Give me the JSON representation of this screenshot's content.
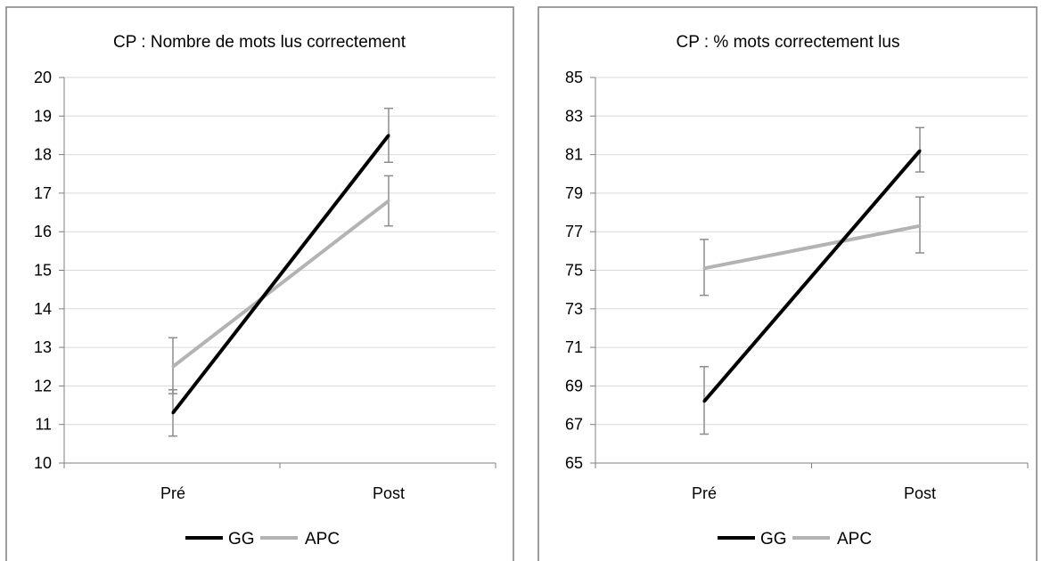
{
  "chart_data": [
    {
      "type": "line",
      "title": "CP : Nombre de mots lus correctement",
      "xlabel": "",
      "ylabel": "",
      "categories": [
        "Pré",
        "Post"
      ],
      "ylim": [
        10,
        20
      ],
      "yticks": [
        10,
        11,
        12,
        13,
        14,
        15,
        16,
        17,
        18,
        19,
        20
      ],
      "grid": true,
      "legend_position": "bottom",
      "series": [
        {
          "name": "GG",
          "color": "#000000",
          "values": [
            11.3,
            18.5
          ],
          "error": [
            [
              10.7,
              11.9
            ],
            [
              17.8,
              19.2
            ]
          ]
        },
        {
          "name": "APC",
          "color": "#b3b3b3",
          "values": [
            12.5,
            16.8
          ],
          "error": [
            [
              11.8,
              13.25
            ],
            [
              16.15,
              17.45
            ]
          ]
        }
      ]
    },
    {
      "type": "line",
      "title": "CP : % mots correctement lus",
      "xlabel": "",
      "ylabel": "",
      "categories": [
        "Pré",
        "Post"
      ],
      "ylim": [
        65,
        85
      ],
      "yticks": [
        65,
        67,
        69,
        71,
        73,
        75,
        77,
        79,
        81,
        83,
        85
      ],
      "grid": true,
      "legend_position": "bottom",
      "series": [
        {
          "name": "GG",
          "color": "#000000",
          "values": [
            68.2,
            81.2
          ],
          "error": [
            [
              66.5,
              70.0
            ],
            [
              80.1,
              82.4
            ]
          ]
        },
        {
          "name": "APC",
          "color": "#b3b3b3",
          "values": [
            75.1,
            77.3
          ],
          "error": [
            [
              73.7,
              76.6
            ],
            [
              75.9,
              78.8
            ]
          ]
        }
      ]
    }
  ]
}
